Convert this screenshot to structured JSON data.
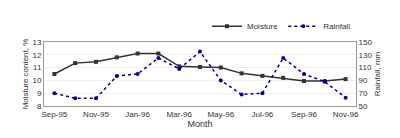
{
  "chart_data": {
    "type": "line",
    "xlabel": "Month",
    "ylabel": "Moisture content, %",
    "y2label": "Rainfall, mm",
    "categories": [
      "Sep-95",
      null,
      "Nov-95",
      null,
      "Jan-96",
      null,
      "Mar-96",
      null,
      "May-96",
      null,
      "Jul-96",
      null,
      "Sep-96",
      null,
      "Nov-96"
    ],
    "series": [
      {
        "name": "Moisture",
        "color": "#333333",
        "marker": "square",
        "line_style": "solid",
        "values": [
          10.5,
          11.35,
          11.45,
          11.8,
          12.1,
          12.1,
          11.1,
          11.05,
          11.0,
          10.55,
          10.35,
          10.2,
          9.95,
          9.95,
          10.1
        ]
      },
      {
        "name": "Rainfall",
        "color": "#00008B",
        "marker": "circle",
        "line_style": "dotted",
        "axis": "y2",
        "values": [
          70,
          62,
          62,
          97,
          100,
          125,
          108,
          135,
          90,
          68,
          70,
          125,
          100,
          88,
          63
        ]
      }
    ],
    "ylim": [
      8,
      13
    ],
    "yticks": [
      8,
      9,
      10,
      11,
      12,
      13
    ],
    "y2lim": [
      50,
      150
    ],
    "y2ticks": [
      50,
      70,
      90,
      110,
      130,
      150
    ],
    "grid": true,
    "legend": "upper right"
  }
}
